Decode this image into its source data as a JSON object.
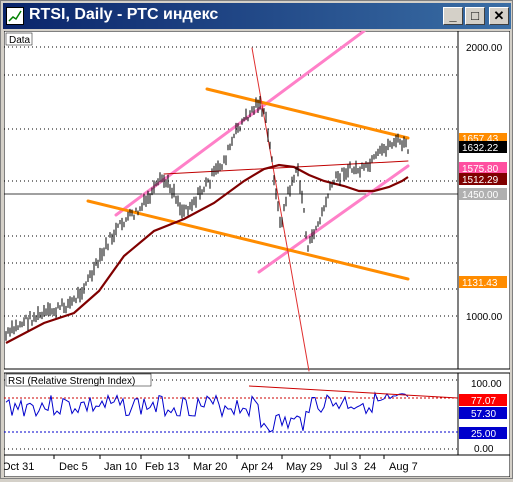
{
  "window": {
    "title": "RTSI, Daily - РТС индекс",
    "buttons": {
      "minimize": "_",
      "maximize": "□",
      "close": "✕"
    }
  },
  "main_pane": {
    "label": "Data",
    "price_levels": [
      "2000.00",
      "1000.00"
    ],
    "tags": [
      {
        "value": "1657.43",
        "bg": "#ff8c00",
        "fg": "#ffffff"
      },
      {
        "value": "1632.22",
        "bg": "#000000",
        "fg": "#ffffff"
      },
      {
        "value": "1575.80",
        "bg": "#ff4fa0",
        "fg": "#ffffff"
      },
      {
        "value": "1512.29",
        "bg": "#800000",
        "fg": "#ffffff"
      },
      {
        "value": "1450.00",
        "bg": "#b0b0b0",
        "fg": "#ffffff"
      },
      {
        "value": "1131.43",
        "bg": "#ff8c00",
        "fg": "#ffffff"
      }
    ]
  },
  "rsi_pane": {
    "label": "RSI (Relative Strengh Index)",
    "levels": [
      "100.00",
      "0.00"
    ],
    "tags": [
      {
        "value": "77.07",
        "bg": "#ff0000",
        "fg": "#ffffff"
      },
      {
        "value": "57.30",
        "bg": "#0000cc",
        "fg": "#ffffff"
      },
      {
        "value": "25.00",
        "bg": "#0000cc",
        "fg": "#ffffff"
      }
    ]
  },
  "x_axis": {
    "labels": [
      "Oct 31",
      "Dec 5",
      "Jan 10",
      "Feb 13",
      "Mar 20",
      "Apr 24",
      "May 29",
      "Jul 3",
      "24",
      "Aug 7"
    ]
  },
  "colors": {
    "channel_orange": "#ff8c00",
    "channel_pink": "#ff80c8",
    "moving_average": "#800000",
    "rsi_line": "#0000cc"
  }
}
